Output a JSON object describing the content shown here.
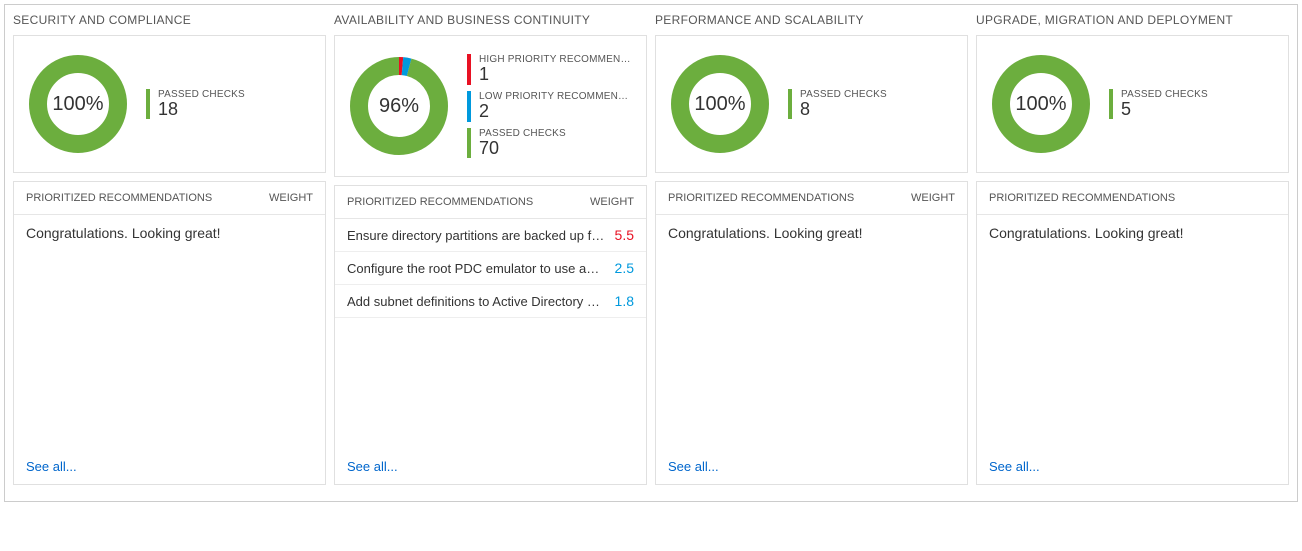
{
  "colors": {
    "green": "#6cae3e",
    "red": "#e81123",
    "blue": "#0099dd",
    "link": "#0066cc",
    "text": "#333333",
    "muted": "#555555",
    "border": "#e0e0e0",
    "donut_track": "#eeeeee"
  },
  "labels": {
    "recs_header": "PRIORITIZED RECOMMENDATIONS",
    "weight_header": "WEIGHT",
    "see_all": "See all...",
    "congrats": "Congratulations. Looking great!",
    "passed_checks": "PASSED CHECKS",
    "high_priority": "HIGH PRIORITY RECOMMENDATI...",
    "low_priority": "LOW PRIORITY RECOMMENDATIO..."
  },
  "columns": [
    {
      "title": "SECURITY AND COMPLIANCE",
      "percent": "100%",
      "donut": {
        "segments": [
          {
            "color": "#6cae3e",
            "fraction": 1.0
          }
        ]
      },
      "legend": [
        {
          "color": "#6cae3e",
          "label_key": "passed_checks",
          "value": "18"
        }
      ],
      "recommendations": [],
      "show_weight": true
    },
    {
      "title": "AVAILABILITY AND BUSINESS CONTINUITY",
      "percent": "96%",
      "donut": {
        "segments": [
          {
            "color": "#e81123",
            "fraction": 0.014
          },
          {
            "color": "#0099dd",
            "fraction": 0.027
          },
          {
            "color": "#6cae3e",
            "fraction": 0.959
          }
        ]
      },
      "legend": [
        {
          "color": "#e81123",
          "label_key": "high_priority",
          "value": "1"
        },
        {
          "color": "#0099dd",
          "label_key": "low_priority",
          "value": "2"
        },
        {
          "color": "#6cae3e",
          "label_key": "passed_checks",
          "value": "70"
        }
      ],
      "recommendations": [
        {
          "text": "Ensure directory partitions are backed up frequently.",
          "weight": "5.5",
          "weight_color": "#e81123"
        },
        {
          "text": "Configure the root PDC emulator to use an authorita...",
          "weight": "2.5",
          "weight_color": "#0099dd"
        },
        {
          "text": "Add subnet definitions to Active Directory sites.",
          "weight": "1.8",
          "weight_color": "#0099dd"
        }
      ],
      "show_weight": true
    },
    {
      "title": "PERFORMANCE AND SCALABILITY",
      "percent": "100%",
      "donut": {
        "segments": [
          {
            "color": "#6cae3e",
            "fraction": 1.0
          }
        ]
      },
      "legend": [
        {
          "color": "#6cae3e",
          "label_key": "passed_checks",
          "value": "8"
        }
      ],
      "recommendations": [],
      "show_weight": true
    },
    {
      "title": "UPGRADE, MIGRATION AND DEPLOYMENT",
      "percent": "100%",
      "donut": {
        "segments": [
          {
            "color": "#6cae3e",
            "fraction": 1.0
          }
        ]
      },
      "legend": [
        {
          "color": "#6cae3e",
          "label_key": "passed_checks",
          "value": "5"
        }
      ],
      "recommendations": [],
      "show_weight": false
    }
  ]
}
